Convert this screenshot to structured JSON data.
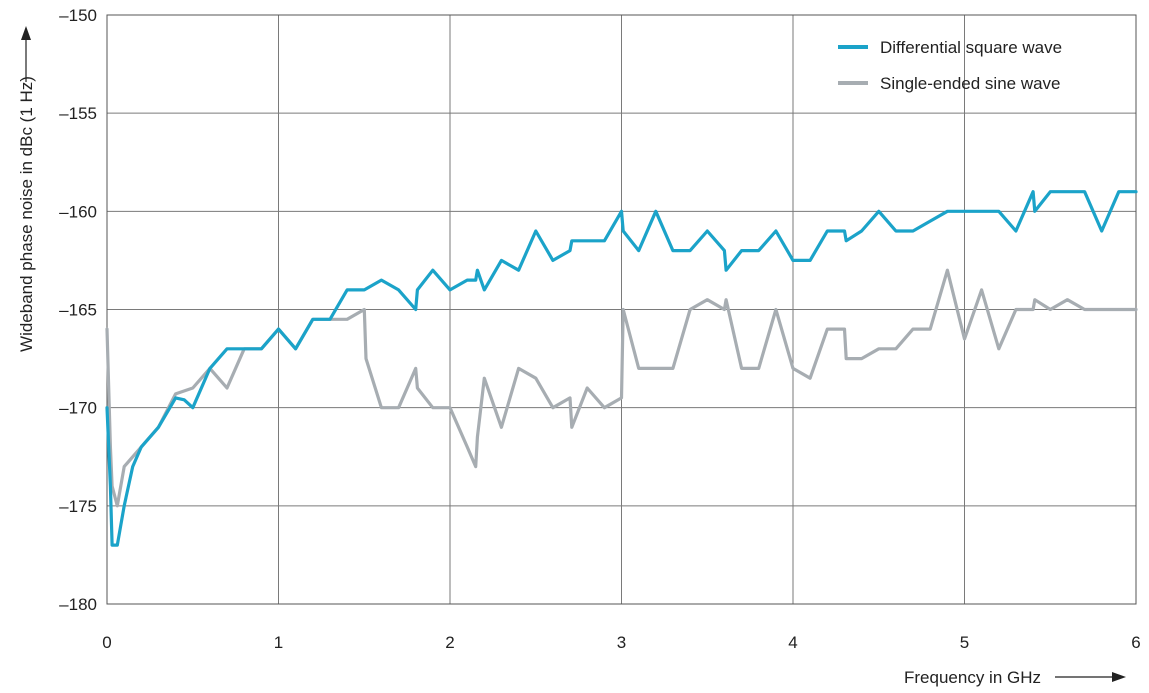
{
  "chart_data": {
    "type": "line",
    "title": "",
    "xlabel": "Frequency in GHz",
    "ylabel": "Wideband phase noise in dBc (1 Hz)",
    "xlim": [
      0,
      6
    ],
    "ylim": [
      -180,
      -150
    ],
    "x_ticks": [
      0,
      1,
      2,
      3,
      4,
      5,
      6
    ],
    "y_ticks": [
      -150,
      -155,
      -160,
      -165,
      -170,
      -175,
      -180
    ],
    "x_tick_labels": [
      "0",
      "1",
      "2",
      "3",
      "4",
      "5",
      "6"
    ],
    "y_tick_labels": [
      "–150",
      "–155",
      "–160",
      "–165",
      "–170",
      "–175",
      "–180"
    ],
    "grid": true,
    "legend_position": "top-right",
    "series": [
      {
        "name": "Differential square wave",
        "color": "#1ba3c9",
        "points": [
          [
            0.0,
            -170
          ],
          [
            0.02,
            -174
          ],
          [
            0.03,
            -177
          ],
          [
            0.06,
            -177
          ],
          [
            0.1,
            -175
          ],
          [
            0.15,
            -173
          ],
          [
            0.2,
            -172
          ],
          [
            0.3,
            -171
          ],
          [
            0.4,
            -169.5
          ],
          [
            0.45,
            -169.6
          ],
          [
            0.5,
            -170
          ],
          [
            0.6,
            -168
          ],
          [
            0.7,
            -167
          ],
          [
            0.8,
            -167
          ],
          [
            0.9,
            -167
          ],
          [
            1.0,
            -166
          ],
          [
            1.1,
            -167
          ],
          [
            1.2,
            -165.5
          ],
          [
            1.3,
            -165.5
          ],
          [
            1.4,
            -164
          ],
          [
            1.5,
            -164
          ],
          [
            1.6,
            -163.5
          ],
          [
            1.7,
            -164
          ],
          [
            1.8,
            -165
          ],
          [
            1.81,
            -164
          ],
          [
            1.9,
            -163
          ],
          [
            2.0,
            -164
          ],
          [
            2.1,
            -163.5
          ],
          [
            2.15,
            -163.5
          ],
          [
            2.16,
            -163
          ],
          [
            2.2,
            -164
          ],
          [
            2.3,
            -162.5
          ],
          [
            2.4,
            -163
          ],
          [
            2.5,
            -161
          ],
          [
            2.6,
            -162.5
          ],
          [
            2.7,
            -162
          ],
          [
            2.71,
            -161.5
          ],
          [
            2.8,
            -161.5
          ],
          [
            2.9,
            -161.5
          ],
          [
            3.0,
            -160
          ],
          [
            3.01,
            -161
          ],
          [
            3.1,
            -162
          ],
          [
            3.2,
            -160
          ],
          [
            3.3,
            -162
          ],
          [
            3.4,
            -162
          ],
          [
            3.5,
            -161
          ],
          [
            3.6,
            -162
          ],
          [
            3.61,
            -163
          ],
          [
            3.7,
            -162
          ],
          [
            3.8,
            -162
          ],
          [
            3.9,
            -161
          ],
          [
            4.0,
            -162.5
          ],
          [
            4.1,
            -162.5
          ],
          [
            4.2,
            -161
          ],
          [
            4.3,
            -161
          ],
          [
            4.31,
            -161.5
          ],
          [
            4.4,
            -161
          ],
          [
            4.5,
            -160
          ],
          [
            4.6,
            -161
          ],
          [
            4.7,
            -161
          ],
          [
            4.8,
            -160.5
          ],
          [
            4.9,
            -160
          ],
          [
            5.0,
            -160
          ],
          [
            5.1,
            -160
          ],
          [
            5.2,
            -160
          ],
          [
            5.3,
            -161
          ],
          [
            5.4,
            -159
          ],
          [
            5.41,
            -160
          ],
          [
            5.5,
            -159
          ],
          [
            5.6,
            -159
          ],
          [
            5.7,
            -159
          ],
          [
            5.8,
            -161
          ],
          [
            5.9,
            -159
          ],
          [
            6.0,
            -159
          ]
        ]
      },
      {
        "name": "Single-ended sine wave",
        "color": "#a7adb2",
        "points": [
          [
            0.0,
            -166
          ],
          [
            0.02,
            -172
          ],
          [
            0.03,
            -174
          ],
          [
            0.06,
            -175
          ],
          [
            0.1,
            -173
          ],
          [
            0.2,
            -172
          ],
          [
            0.3,
            -171
          ],
          [
            0.4,
            -169.3
          ],
          [
            0.5,
            -169
          ],
          [
            0.6,
            -168
          ],
          [
            0.7,
            -169
          ],
          [
            0.8,
            -167
          ],
          [
            0.9,
            -167
          ],
          [
            1.0,
            -166
          ],
          [
            1.1,
            -167
          ],
          [
            1.2,
            -165.5
          ],
          [
            1.3,
            -165.5
          ],
          [
            1.4,
            -165.5
          ],
          [
            1.5,
            -165
          ],
          [
            1.51,
            -167.5
          ],
          [
            1.6,
            -170
          ],
          [
            1.7,
            -170
          ],
          [
            1.8,
            -168
          ],
          [
            1.81,
            -169
          ],
          [
            1.9,
            -170
          ],
          [
            2.0,
            -170
          ],
          [
            2.1,
            -172
          ],
          [
            2.15,
            -173
          ],
          [
            2.16,
            -171.5
          ],
          [
            2.2,
            -168.5
          ],
          [
            2.3,
            -171
          ],
          [
            2.4,
            -168
          ],
          [
            2.5,
            -168.5
          ],
          [
            2.6,
            -170
          ],
          [
            2.7,
            -169.5
          ],
          [
            2.71,
            -171
          ],
          [
            2.8,
            -169
          ],
          [
            2.9,
            -170
          ],
          [
            3.0,
            -169.5
          ],
          [
            3.01,
            -165
          ],
          [
            3.1,
            -168
          ],
          [
            3.2,
            -168
          ],
          [
            3.3,
            -168
          ],
          [
            3.4,
            -165
          ],
          [
            3.5,
            -164.5
          ],
          [
            3.6,
            -165
          ],
          [
            3.61,
            -164.5
          ],
          [
            3.7,
            -168
          ],
          [
            3.8,
            -168
          ],
          [
            3.9,
            -165
          ],
          [
            4.0,
            -168
          ],
          [
            4.1,
            -168.5
          ],
          [
            4.2,
            -166
          ],
          [
            4.3,
            -166
          ],
          [
            4.31,
            -167.5
          ],
          [
            4.4,
            -167.5
          ],
          [
            4.5,
            -167
          ],
          [
            4.6,
            -167
          ],
          [
            4.7,
            -166
          ],
          [
            4.8,
            -166
          ],
          [
            4.9,
            -163
          ],
          [
            5.0,
            -166.5
          ],
          [
            5.1,
            -164
          ],
          [
            5.2,
            -167
          ],
          [
            5.3,
            -165
          ],
          [
            5.4,
            -165
          ],
          [
            5.41,
            -164.5
          ],
          [
            5.5,
            -165
          ],
          [
            5.6,
            -164.5
          ],
          [
            5.7,
            -165
          ],
          [
            5.8,
            -165
          ],
          [
            5.9,
            -165
          ],
          [
            6.0,
            -165
          ]
        ]
      }
    ]
  }
}
